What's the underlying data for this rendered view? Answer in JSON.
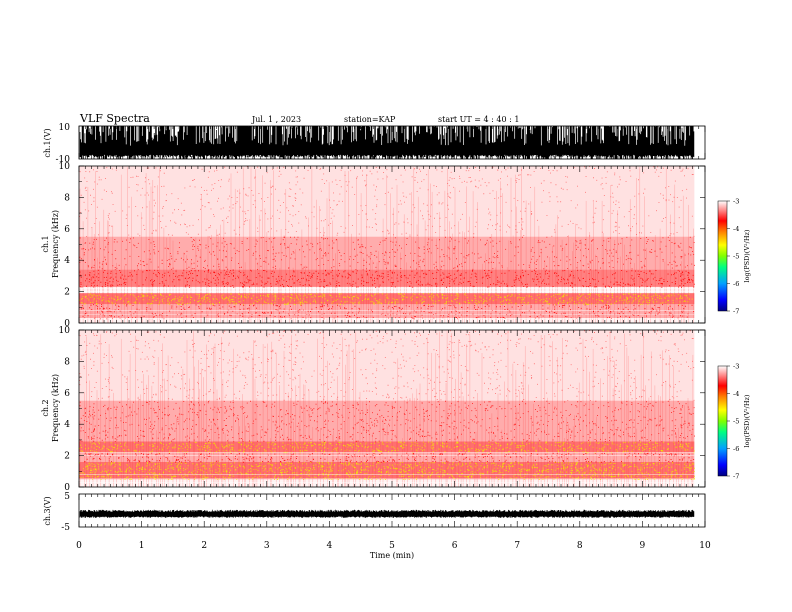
{
  "header": {
    "title": "VLF Spectra",
    "date": "Jul.  1  , 2023",
    "station": "station=KAP",
    "start": "start  UT =   4 : 40 : 1"
  },
  "chart_data": [
    {
      "type": "line",
      "name": "ch1-waveform",
      "ylabel": "ch.1(V)",
      "ylim": [
        -10,
        10
      ],
      "yticks": [
        "10",
        "-10"
      ],
      "note": "dense broadband waveform saturating near +/-10 V"
    },
    {
      "type": "heatmap",
      "name": "ch1-spectrogram",
      "ylabel": "ch.1\nFrequency (kHz)",
      "ylim": [
        0,
        10
      ],
      "yticks": [
        "0",
        "2",
        "4",
        "6",
        "8",
        "10"
      ],
      "bands_khz": [
        {
          "from": 0.3,
          "to": 1.2,
          "level": 0.35
        },
        {
          "from": 1.2,
          "to": 1.9,
          "level": 0.75
        },
        {
          "from": 2.3,
          "to": 3.4,
          "level": 0.45
        },
        {
          "from": 3.4,
          "to": 5.5,
          "level": 0.2
        },
        {
          "from": 5.5,
          "to": 10,
          "level": 0.1
        }
      ]
    },
    {
      "type": "heatmap",
      "name": "ch2-spectrogram",
      "ylabel": "ch.2\nFrequency (kHz)",
      "ylim": [
        0,
        10
      ],
      "yticks": [
        "0",
        "2",
        "4",
        "6",
        "8",
        "10"
      ],
      "bands_khz": [
        {
          "from": 0.5,
          "to": 1.6,
          "level": 0.85
        },
        {
          "from": 1.6,
          "to": 2.2,
          "level": 0.4
        },
        {
          "from": 2.2,
          "to": 2.9,
          "level": 0.7
        },
        {
          "from": 2.9,
          "to": 5.5,
          "level": 0.25
        },
        {
          "from": 5.5,
          "to": 10,
          "level": 0.12
        }
      ]
    },
    {
      "type": "line",
      "name": "ch3-waveform",
      "ylabel": "ch.3(V)",
      "ylim": [
        -5,
        5
      ],
      "yticks": [
        "5",
        "-5"
      ],
      "note": "narrow band near -1 V"
    }
  ],
  "xaxis": {
    "label": "Time  (min)",
    "range": [
      0,
      10
    ],
    "ticks": [
      "0",
      "1",
      "2",
      "3",
      "4",
      "5",
      "6",
      "7",
      "8",
      "9",
      "10"
    ],
    "data_end": 9.83
  },
  "colorbar": {
    "label": "log(PSD)(V²/Hz)",
    "range": [
      -7,
      -3
    ],
    "ticks": [
      "-3",
      "-4",
      "-5",
      "-6",
      "-7"
    ],
    "colors": [
      "#000080",
      "#0000ff",
      "#00a0ff",
      "#00ff80",
      "#80ff00",
      "#ffff00",
      "#ff8000",
      "#ff0000",
      "#ff8080",
      "#ffffff"
    ]
  }
}
